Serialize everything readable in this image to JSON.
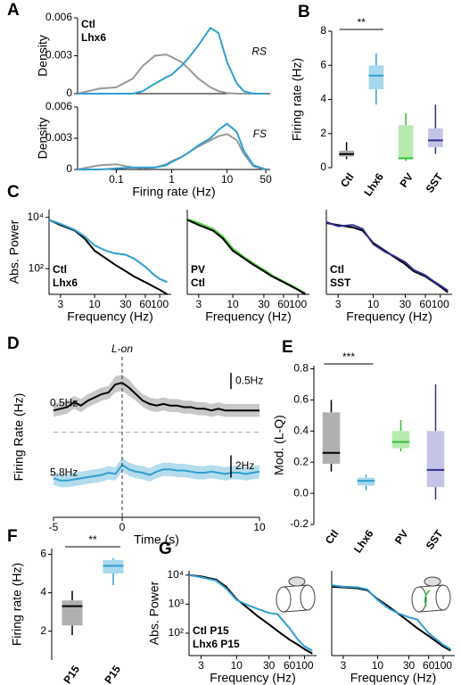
{
  "chart_data": [
    {
      "type": "line",
      "panel": "A",
      "ylabel": "Density",
      "annotation": "RS",
      "legend": "upper left",
      "xlog": true,
      "xlim": [
        0.02,
        60
      ],
      "ylim": [
        0,
        0.006
      ],
      "yticks": [
        0,
        0.003,
        0.006
      ],
      "x": [
        0.02,
        0.05,
        0.1,
        0.2,
        0.3,
        0.5,
        0.8,
        1,
        1.5,
        2,
        3,
        5,
        7,
        10,
        15,
        20,
        30,
        50
      ],
      "series": [
        {
          "name": "Ctl",
          "color": "#999999",
          "label_color": "#000000",
          "values": [
            0,
            0.0004,
            0.0005,
            0.0012,
            0.0022,
            0.003,
            0.0031,
            0.0029,
            0.0025,
            0.002,
            0.0012,
            0.0005,
            0.0002,
            5e-05,
            0,
            0,
            0,
            0
          ]
        },
        {
          "name": "Lhx6",
          "color": "#2f9fd0",
          "label_color": "#2f9fd0",
          "values": [
            0,
            0,
            0,
            0,
            0.0002,
            0.0008,
            0.0013,
            0.0015,
            0.0022,
            0.0028,
            0.0038,
            0.0052,
            0.0048,
            0.0025,
            0.0008,
            0.0002,
            0,
            0
          ]
        }
      ]
    },
    {
      "type": "line",
      "ylabel": "Density",
      "xlabel": "Firing rate (Hz)",
      "annotation": "FS",
      "xlog": true,
      "xlim": [
        0.02,
        60
      ],
      "ylim": [
        0,
        0.006
      ],
      "yticks": [
        0,
        0.003,
        0.006
      ],
      "xticks": [
        0.1,
        1,
        10,
        50
      ],
      "x": [
        0.02,
        0.05,
        0.1,
        0.2,
        0.3,
        0.5,
        0.8,
        1,
        1.5,
        2,
        3,
        5,
        7,
        10,
        15,
        20,
        30,
        50
      ],
      "series": [
        {
          "color": "#999999",
          "values": [
            0,
            0.0004,
            0.0005,
            0.0002,
            0.0001,
            0.0002,
            0.0005,
            0.0008,
            0.0012,
            0.0016,
            0.0022,
            0.0028,
            0.0032,
            0.0034,
            0.0028,
            0.0015,
            0.0003,
            0
          ]
        },
        {
          "color": "#2f9fd0",
          "values": [
            0,
            0,
            0.0001,
            0.0002,
            0.0002,
            0.0002,
            0.0004,
            0.0007,
            0.0012,
            0.0016,
            0.0023,
            0.003,
            0.0038,
            0.0044,
            0.0036,
            0.0018,
            0.0004,
            0
          ]
        }
      ]
    },
    {
      "type": "box",
      "panel": "B",
      "ylabel": "Firing rate (Hz)",
      "significance": "**",
      "ylim": [
        0,
        8
      ],
      "yticks": [
        0,
        2,
        4,
        6,
        8
      ],
      "categories": [
        "Ctl",
        "Lhx6",
        "PV",
        "SST"
      ],
      "min": [
        0.5,
        3.7,
        0.4,
        0.8
      ],
      "q1": [
        0.65,
        4.6,
        0.5,
        1.2
      ],
      "median": [
        0.8,
        5.4,
        0.55,
        1.6
      ],
      "q3": [
        1.0,
        6.0,
        2.5,
        2.3
      ],
      "max": [
        1.5,
        6.7,
        3.2,
        3.7
      ],
      "colors": [
        "#b0b0b0",
        "#a8d8ec",
        "#b8eab0",
        "#c4c4e6"
      ],
      "line_colors": [
        "#000000",
        "#2f9fd0",
        "#33bb33",
        "#303090"
      ]
    },
    {
      "type": "line",
      "panel": "C",
      "ylabel": "Abs. Power",
      "xlabel": "Frequency (Hz)",
      "legend": "lower left",
      "xlog": true,
      "ylog": true,
      "xlim": [
        2,
        150
      ],
      "ylim": [
        10,
        20000
      ],
      "xticks": [
        3,
        10,
        30,
        60,
        100
      ],
      "yticks": [
        {
          "value": 100,
          "label": "10²"
        },
        {
          "value": 10000,
          "label": "10⁴"
        }
      ],
      "x": [
        2,
        3,
        5,
        7,
        10,
        15,
        20,
        30,
        40,
        60,
        80,
        100,
        130
      ],
      "series": [
        {
          "name": "Ctl",
          "color": "#000000",
          "values": [
            8000,
            5000,
            3000,
            1500,
            500,
            250,
            150,
            80,
            50,
            30,
            20,
            15,
            10
          ]
        },
        {
          "name": "Lhx6",
          "color": "#2f9fd0",
          "values": [
            8000,
            5500,
            3200,
            1800,
            800,
            500,
            400,
            350,
            250,
            120,
            60,
            40,
            30
          ]
        }
      ]
    },
    {
      "type": "line",
      "xlabel": "Frequency (Hz)",
      "legend": "lower left",
      "xlog": true,
      "ylog": true,
      "xlim": [
        2,
        150
      ],
      "ylim": [
        10,
        20000
      ],
      "xticks": [
        3,
        10,
        30,
        60,
        100
      ],
      "x": [
        2,
        3,
        5,
        7,
        10,
        15,
        20,
        30,
        40,
        60,
        80,
        100,
        130
      ],
      "series": [
        {
          "name": "PV",
          "color": "#44cc33",
          "values": [
            8500,
            6000,
            3500,
            1800,
            600,
            280,
            170,
            90,
            55,
            32,
            22,
            16,
            11
          ]
        },
        {
          "name": "Ctl",
          "color": "#000000",
          "values": [
            8000,
            5000,
            3000,
            1500,
            500,
            250,
            150,
            80,
            50,
            30,
            20,
            15,
            10
          ]
        }
      ]
    },
    {
      "type": "line",
      "xlabel": "Frequency (Hz)",
      "legend": "lower left",
      "xlog": true,
      "ylog": true,
      "xlim": [
        2,
        150
      ],
      "ylim": [
        10,
        20000
      ],
      "xticks": [
        3,
        10,
        30,
        60,
        100
      ],
      "x": [
        2,
        3,
        5,
        7,
        10,
        15,
        20,
        30,
        40,
        60,
        80,
        100,
        130
      ],
      "series": [
        {
          "name": "Ctl",
          "color": "#000000",
          "values": [
            6000,
            5000,
            4000,
            3000,
            1000,
            500,
            300,
            150,
            80,
            50,
            30,
            20,
            12
          ]
        },
        {
          "name": "SST",
          "color": "#303090",
          "values": [
            6500,
            4500,
            5000,
            3500,
            900,
            450,
            320,
            180,
            90,
            55,
            32,
            22,
            14
          ]
        }
      ]
    },
    {
      "type": "traces",
      "panel": "D",
      "ylabel": "Firing Rate (Hz)",
      "xlabel": "Time (s)",
      "event": {
        "x": 0,
        "label": "L-on"
      },
      "xlim": [
        -5,
        10
      ],
      "xticks": [
        -5,
        0,
        10
      ],
      "x": [
        -5,
        -4.5,
        -4,
        -3.5,
        -3,
        -2.5,
        -2,
        -1.5,
        -1,
        -0.5,
        0,
        0.5,
        1,
        1.5,
        2,
        2.5,
        3,
        3.5,
        4,
        4.5,
        5,
        5.5,
        6,
        6.5,
        7,
        7.5,
        8,
        8.5,
        9,
        9.5,
        10
      ],
      "series": [
        {
          "color": "#000000",
          "band_color": "#c8c8c8",
          "ylim": [
            -0.3,
            2.1
          ],
          "baseline": {
            "value": 0.5,
            "label": "0.5Hz"
          },
          "scalebar": {
            "value": 0.5,
            "label": "0.5Hz"
          },
          "values": [
            0.45,
            0.5,
            0.55,
            0.7,
            0.6,
            0.75,
            0.85,
            0.95,
            1.0,
            1.25,
            1.3,
            1.15,
            0.95,
            0.75,
            0.65,
            0.6,
            0.65,
            0.6,
            0.6,
            0.55,
            0.55,
            0.5,
            0.5,
            0.45,
            0.5,
            0.45,
            0.45,
            0.45,
            0.45,
            0.45,
            0.45
          ],
          "error": [
            0.2,
            0.2,
            0.2,
            0.2,
            0.2,
            0.2,
            0.2,
            0.2,
            0.2,
            0.25,
            0.25,
            0.25,
            0.2,
            0.2,
            0.2,
            0.2,
            0.2,
            0.2,
            0.2,
            0.2,
            0.2,
            0.2,
            0.2,
            0.2,
            0.2,
            0.2,
            0.2,
            0.2,
            0.2,
            0.2,
            0.2
          ]
        },
        {
          "color": "#2f9fd0",
          "band_color": "#b4dcec",
          "ylim": [
            2.3,
            9.3
          ],
          "baseline": {
            "value": 5.8,
            "label": "5.8Hz"
          },
          "scalebar": {
            "value": 2,
            "label": "2Hz"
          },
          "values": [
            5.8,
            5.6,
            5.6,
            5.7,
            5.8,
            5.9,
            6.0,
            6.1,
            6.3,
            6.2,
            7.0,
            6.6,
            6.4,
            6.3,
            6.1,
            6.4,
            6.6,
            6.6,
            6.5,
            6.5,
            6.4,
            6.3,
            6.3,
            6.4,
            6.3,
            6.2,
            6.3,
            6.3,
            6.2,
            6.3,
            6.4
          ],
          "error": [
            0.6,
            0.6,
            0.6,
            0.6,
            0.6,
            0.6,
            0.6,
            0.6,
            0.6,
            0.6,
            0.6,
            0.6,
            0.6,
            0.6,
            0.6,
            0.6,
            0.6,
            0.6,
            0.6,
            0.6,
            0.6,
            0.6,
            0.6,
            0.6,
            0.6,
            0.6,
            0.6,
            0.6,
            0.6,
            0.6,
            0.6
          ]
        }
      ]
    },
    {
      "type": "box",
      "panel": "E",
      "ylabel": "Mod. (L-Q)",
      "significance": "***",
      "ylim": [
        -0.2,
        0.82
      ],
      "yticks": [
        -0.2,
        {
          "value": 0,
          "label": "0.0"
        },
        0.2,
        0.4,
        0.6,
        0.8
      ],
      "categories": [
        "Ctl",
        "Lhx6",
        "PV",
        "SST"
      ],
      "min": [
        0.14,
        0.02,
        0.27,
        -0.04
      ],
      "q1": [
        0.19,
        0.05,
        0.29,
        0.04
      ],
      "median": [
        0.26,
        0.08,
        0.33,
        0.15
      ],
      "q3": [
        0.52,
        0.1,
        0.4,
        0.4
      ],
      "max": [
        0.6,
        0.12,
        0.47,
        0.7
      ],
      "colors": [
        "#b0b0b0",
        "#a8d8ec",
        "#b8eab0",
        "#c4c4e6"
      ],
      "line_colors": [
        "#000000",
        "#2f9fd0",
        "#33bb33",
        "#303090"
      ]
    },
    {
      "type": "box",
      "panel": "F",
      "ylabel": "Firing rate (Hz)",
      "significance": "**",
      "ylim": [
        0.5,
        6.3
      ],
      "yticks": [
        2,
        4,
        6
      ],
      "categories": [
        "P15",
        "P15"
      ],
      "min": [
        1.8,
        4.4
      ],
      "q1": [
        2.3,
        5.0
      ],
      "median": [
        3.3,
        5.4
      ],
      "q3": [
        3.6,
        5.7
      ],
      "max": [
        4.1,
        5.8
      ],
      "colors": [
        "#b0b0b0",
        "#a8d8ec"
      ],
      "line_colors": [
        "#000000",
        "#2f9fd0"
      ]
    },
    {
      "type": "line",
      "panel": "G",
      "ylabel": "Abs. Power",
      "xlabel": "Frequency (Hz)",
      "legend": "lower left",
      "xlog": true,
      "ylog": true,
      "xlim": [
        2,
        150
      ],
      "ylim": [
        17,
        14000
      ],
      "xticks": [
        3,
        10,
        30,
        60,
        100
      ],
      "yticks": [
        {
          "value": 100,
          "label": "10²"
        },
        {
          "value": 1000,
          "label": "10³"
        },
        {
          "value": 10000,
          "label": "10⁴"
        }
      ],
      "x": [
        2,
        3,
        5,
        7,
        10,
        15,
        20,
        30,
        40,
        60,
        80,
        100,
        130
      ],
      "series": [
        {
          "name": "Ctl P15",
          "color": "#000000",
          "values": [
            10000,
            9000,
            7000,
            4000,
            1500,
            700,
            400,
            200,
            120,
            60,
            40,
            28,
            20
          ]
        },
        {
          "name": "Lhx6 P15",
          "color": "#2f9fd0",
          "values": [
            10000,
            8500,
            6500,
            3500,
            1400,
            900,
            700,
            500,
            450,
            150,
            60,
            35,
            25
          ]
        }
      ]
    },
    {
      "type": "line",
      "xlabel": "Frequency (Hz)",
      "xlog": true,
      "ylog": true,
      "xlim": [
        2,
        150
      ],
      "ylim": [
        17,
        14000
      ],
      "xticks": [
        3,
        10,
        30,
        60,
        100
      ],
      "x": [
        2,
        3,
        5,
        7,
        10,
        15,
        20,
        30,
        40,
        60,
        80,
        100,
        130
      ],
      "series": [
        {
          "color": "#000000",
          "values": [
            4000,
            3800,
            3500,
            3000,
            1500,
            800,
            500,
            250,
            150,
            80,
            50,
            35,
            25
          ]
        },
        {
          "color": "#2f9fd0",
          "values": [
            4500,
            4000,
            3800,
            3200,
            1400,
            700,
            500,
            350,
            300,
            100,
            60,
            40,
            28
          ]
        }
      ]
    }
  ]
}
